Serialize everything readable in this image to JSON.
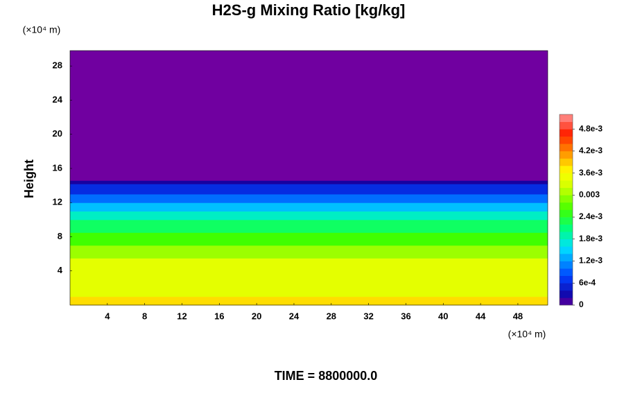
{
  "chart_data": {
    "type": "heatmap",
    "title": "H2S-g Mixing Ratio [kg/kg]",
    "y_label": "Height",
    "y_unit": "(×10⁴ m)",
    "x_unit": "(×10⁴ m)",
    "footer": "TIME = 8800000.0",
    "xlim": [
      0,
      51.2
    ],
    "xticks": [
      4,
      8,
      12,
      16,
      20,
      24,
      28,
      32,
      36,
      40,
      44,
      48
    ],
    "ylim": [
      0,
      29.8
    ],
    "yticks": [
      4,
      8,
      12,
      16,
      20,
      24,
      28
    ],
    "y_edges": [
      0,
      1,
      5.5,
      7,
      8.5,
      10,
      11,
      12,
      13,
      14.2,
      14.6,
      29.8
    ],
    "values": [
      0.0038,
      0.0034,
      0.003,
      0.0026,
      0.0022,
      0.0018,
      0.0014,
      0.001,
      0.0006,
      0.0002,
      0
    ],
    "clim": [
      0,
      0.0052
    ],
    "cticks": [
      0,
      {
        "value": 0.0006,
        "label": "6e-4"
      },
      {
        "value": 0.0012,
        "label": "1.2e-3"
      },
      {
        "value": 0.0018,
        "label": "1.8e-3"
      },
      {
        "value": 0.0024,
        "label": "2.4e-3"
      },
      0.003,
      {
        "value": 0.0036,
        "label": "3.6e-3"
      },
      {
        "value": 0.0042,
        "label": "4.2e-3"
      },
      {
        "value": 0.0048,
        "label": "4.8e-3"
      }
    ]
  }
}
